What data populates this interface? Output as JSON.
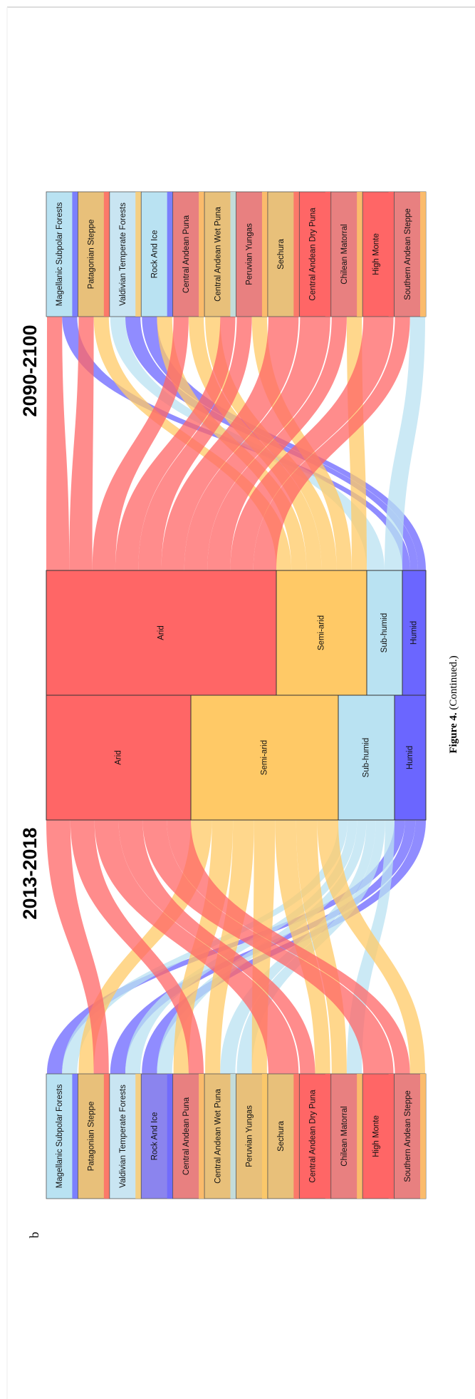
{
  "panel_label": "b",
  "periods": [
    "2013-2018",
    "2090-2100"
  ],
  "ecoregions_2013": [
    "Magellanic Subpolar Forests",
    "Patagonian Steppe",
    "Valdivian Temperate Forests",
    "Rock And Ice",
    "Central Andean Puna",
    "Central Andean Wet Puna",
    "Peruvian Yungas",
    "Sechura",
    "Central Andean Dry Puna",
    "Chilean Matorral",
    "High Monte",
    "Southern Andean Steppe"
  ],
  "climate_2013": [
    "Arid",
    "Semi-arid",
    "Sub-humid",
    "Humid"
  ],
  "climate_2090": [
    "Arid",
    "Semi-arid",
    "Sub-humid",
    "Humid"
  ],
  "ecoregions_2090": [
    "Magellanic Subpolar Forests",
    "Patagonian Steppe",
    "Valdivian Temperate Forests",
    "Rock And Ice",
    "Central Andean Puna",
    "Central Andean Wet Puna",
    "Peruvian Yungas",
    "Sechura",
    "Central Andean Dry Puna",
    "Chilean Matorral",
    "High Monte",
    "Southern Andean Steppe"
  ],
  "caption": {
    "label": "Figure 4.",
    "text": "(Continued.)"
  }
}
